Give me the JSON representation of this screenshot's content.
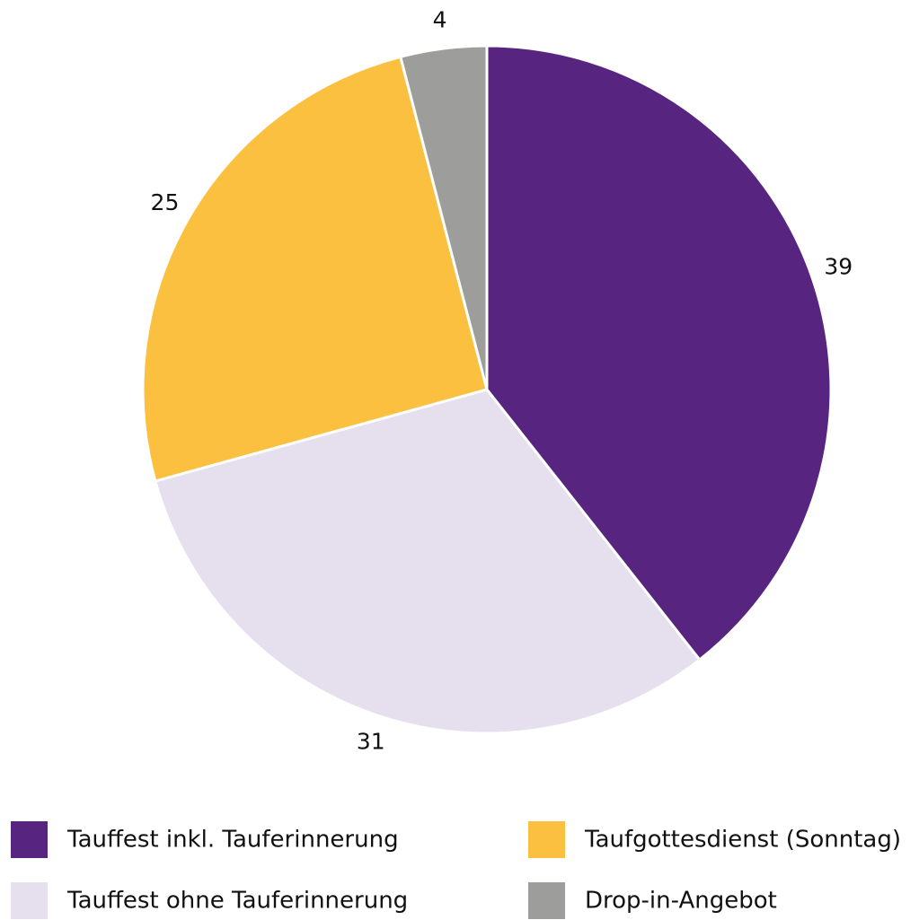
{
  "chart_data": {
    "type": "pie",
    "categories": [
      "Tauffest inkl. Tauferinnerung",
      "Tauffest ohne Tauferinnerung",
      "Taufgottesdienst (Sonntag)",
      "Drop-in-Angebot"
    ],
    "values": [
      39,
      31,
      25,
      4
    ],
    "colors": [
      "#57257f",
      "#e5dfee",
      "#fbc040",
      "#9d9d9c"
    ]
  }
}
